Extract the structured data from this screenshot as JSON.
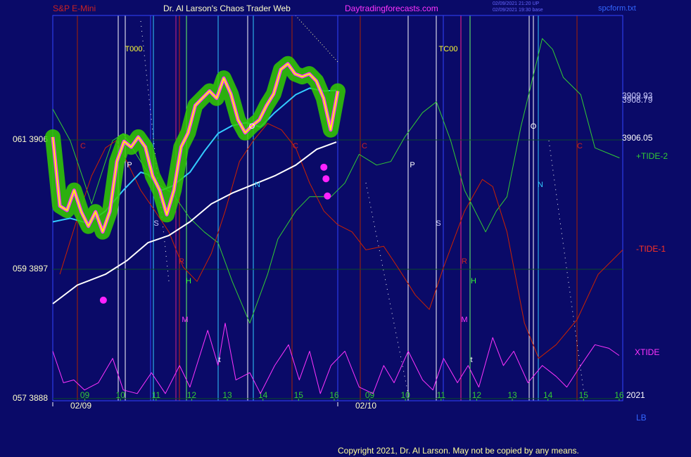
{
  "header": {
    "site_title": "Dr. Al Larson's Chaos Trader Web",
    "site_url": "Daytradingforecasts.com",
    "timestamps": [
      "02/09/2021 21:20 UP",
      "02/09/2021 19:30 base"
    ],
    "file": "spcform.txt",
    "copyright": "Copyright 2021, Dr. Al Larson. May not be copied by any means."
  },
  "chart_data": {
    "type": "line",
    "title": "S&P E-Mini",
    "xlim": [
      0.1,
      16.1
    ],
    "ylim": [
      3887.85,
      3914.66
    ],
    "xticks": [
      {
        "value": 1,
        "label": "09"
      },
      {
        "value": 2,
        "label": "10"
      },
      {
        "value": 3,
        "label": "11"
      },
      {
        "value": 4,
        "label": "12"
      },
      {
        "value": 5,
        "label": "13"
      },
      {
        "value": 6,
        "label": "14"
      },
      {
        "value": 7,
        "label": "15"
      },
      {
        "value": 8,
        "label": "16"
      },
      {
        "value": 9,
        "label": "09"
      },
      {
        "value": 10,
        "label": "10"
      },
      {
        "value": 11,
        "label": "11"
      },
      {
        "value": 12,
        "label": "12"
      },
      {
        "value": 13,
        "label": "13"
      },
      {
        "value": 14,
        "label": "14"
      },
      {
        "value": 15,
        "label": "15"
      },
      {
        "value": 16,
        "label": "16"
      }
    ],
    "x_groups": [
      "02/09",
      "02/10"
    ],
    "yticks": [
      {
        "value": 3906,
        "label": "061  3906"
      },
      {
        "value": 3897,
        "label": "059  3897"
      },
      {
        "value": 3888,
        "label": "057  3888"
      }
    ],
    "grid": true,
    "grid_color": "#0b4a2a",
    "price_labels": [
      3909.93,
      3908.79,
      3906.05
    ],
    "year_label": "2021",
    "corner_label": "LB",
    "annotations": [
      "T000",
      "TC00",
      "C",
      "C",
      "C",
      "C",
      "P",
      "P",
      "O",
      "O",
      "N",
      "N",
      "S",
      "S",
      "R",
      "R",
      "H",
      "H",
      "M",
      "M",
      "t",
      "t"
    ],
    "series": [
      {
        "color": "#ffff00",
        "glow_color": "#33cc00",
        "x": [
          0.1,
          0.3,
          0.5,
          0.7,
          0.9,
          1.1,
          1.3,
          1.5,
          1.7,
          1.9,
          2.1,
          2.3,
          2.5,
          2.7,
          2.9,
          3.1,
          3.3,
          3.5,
          3.7,
          3.9,
          4.1,
          4.3,
          4.5,
          4.7,
          4.9,
          5.1,
          5.3,
          5.5,
          5.7,
          5.9,
          6.1,
          6.3,
          6.5,
          6.7,
          6.9,
          7.1,
          7.3,
          7.5,
          7.7,
          7.9,
          8.1
        ],
        "values": [
          3906.2,
          3901.4,
          3901.1,
          3902.5,
          3901.0,
          3900.0,
          3901.0,
          3899.6,
          3901.0,
          3904.5,
          3905.9,
          3905.5,
          3906.2,
          3905.5,
          3903.5,
          3902.5,
          3900.8,
          3902.5,
          3905.5,
          3906.5,
          3908.4,
          3908.9,
          3909.4,
          3908.9,
          3910.3,
          3909.2,
          3907.4,
          3906.5,
          3907.0,
          3907.4,
          3908.4,
          3909.2,
          3910.9,
          3911.3,
          3910.6,
          3910.4,
          3910.6,
          3910.1,
          3908.9,
          3906.7,
          3909.4
        ]
      },
      {
        "color": "#33ccff",
        "x": [
          0.1,
          0.59,
          1.09,
          1.58,
          2.08,
          2.57,
          2.77,
          3.16,
          3.46,
          3.95,
          4.35,
          4.74,
          5.14,
          5.53,
          5.93,
          6.33,
          6.92,
          7.31,
          7.71,
          8.06
        ],
        "values": [
          3900.3,
          3900.55,
          3900.2,
          3901.05,
          3902.5,
          3903.75,
          3903.6,
          3902.5,
          3902.8,
          3903.75,
          3905.2,
          3906.45,
          3907.0,
          3907.2,
          3906.9,
          3907.9,
          3909.15,
          3909.6,
          3909.4,
          3909.45
        ]
      },
      {
        "color": "#ffffff",
        "x": [
          0.1,
          0.79,
          1.58,
          2.18,
          2.77,
          3.36,
          3.95,
          4.55,
          5.14,
          5.73,
          6.33,
          6.92,
          7.51,
          8.06
        ],
        "values": [
          3894.6,
          3895.9,
          3896.65,
          3897.6,
          3898.85,
          3899.35,
          3900.3,
          3901.55,
          3902.3,
          3902.9,
          3903.5,
          3904.25,
          3905.35,
          3905.85
        ]
      },
      {
        "name": "+TIDE-2",
        "color": "#33cc33",
        "x": [
          0.1,
          0.59,
          1.19,
          1.58,
          1.78,
          2.08,
          2.57,
          2.97,
          3.46,
          3.95,
          4.35,
          4.74,
          5.14,
          5.63,
          6.13,
          6.42,
          6.92,
          7.31,
          7.91,
          8.3,
          8.7,
          9.19,
          9.59,
          9.98,
          10.48,
          10.87,
          11.27,
          11.66,
          12.25,
          12.55,
          12.85,
          13.24,
          13.84,
          14.13,
          14.43,
          14.92,
          15.32,
          16.01
        ],
        "values": [
          3908.15,
          3905.95,
          3901.55,
          3904.5,
          3905.95,
          3906.45,
          3904.5,
          3903.0,
          3902.3,
          3900.55,
          3899.6,
          3898.85,
          3896.15,
          3893.25,
          3896.65,
          3899.1,
          3901.05,
          3902.05,
          3902.05,
          3903.0,
          3905.0,
          3904.25,
          3904.5,
          3906.2,
          3907.9,
          3908.65,
          3905.95,
          3902.5,
          3899.6,
          3901.05,
          3902.05,
          3906.9,
          3913.05,
          3912.3,
          3910.35,
          3909.15,
          3905.45,
          3904.75
        ]
      },
      {
        "name": "-TIDE-1",
        "color": "#cc2200",
        "x": [
          0.3,
          0.79,
          1.19,
          1.58,
          1.88,
          2.18,
          2.57,
          2.97,
          3.36,
          3.76,
          4.15,
          4.55,
          4.94,
          5.34,
          5.73,
          6.13,
          6.52,
          6.92,
          7.31,
          7.71,
          8.1,
          8.5,
          8.89,
          9.39,
          9.78,
          10.28,
          10.67,
          11.07,
          11.66,
          12.16,
          12.45,
          12.85,
          13.34,
          13.74,
          14.23,
          14.82,
          15.41,
          16.1
        ],
        "values": [
          3896.65,
          3900.55,
          3903.5,
          3905.45,
          3905.95,
          3904.5,
          3902.5,
          3901.05,
          3899.6,
          3897.15,
          3896.15,
          3898.1,
          3901.05,
          3904.5,
          3905.95,
          3907.15,
          3906.7,
          3905.45,
          3903.0,
          3901.05,
          3900.1,
          3899.6,
          3898.35,
          3898.6,
          3897.15,
          3895.2,
          3894.2,
          3897.15,
          3901.05,
          3903.25,
          3902.75,
          3899.6,
          3893.25,
          3890.8,
          3891.75,
          3893.5,
          3896.65,
          3898.35
        ]
      },
      {
        "name": "XTIDE",
        "color": "#ff33ff",
        "x": [
          0.1,
          0.4,
          0.69,
          0.99,
          1.38,
          1.78,
          2.08,
          2.47,
          2.87,
          3.26,
          3.66,
          3.95,
          4.45,
          4.74,
          4.94,
          5.24,
          5.63,
          5.93,
          6.33,
          6.72,
          7.02,
          7.31,
          7.61,
          7.91,
          8.3,
          8.7,
          9.09,
          9.39,
          9.68,
          10.08,
          10.48,
          10.77,
          11.07,
          11.46,
          11.76,
          12.06,
          12.45,
          12.75,
          13.04,
          13.44,
          13.84,
          14.23,
          14.53,
          14.92,
          15.32,
          15.71,
          16.0
        ],
        "values": [
          3891.3,
          3889.1,
          3889.3,
          3888.6,
          3889.1,
          3890.8,
          3888.6,
          3888.35,
          3889.8,
          3888.35,
          3890.3,
          3888.8,
          3892.75,
          3890.3,
          3893.25,
          3889.3,
          3889.8,
          3888.35,
          3890.3,
          3891.75,
          3889.3,
          3891.3,
          3888.35,
          3890.3,
          3891.3,
          3888.8,
          3888.35,
          3890.3,
          3889.1,
          3891.3,
          3889.3,
          3888.6,
          3890.8,
          3889.1,
          3890.3,
          3888.8,
          3892.25,
          3890.3,
          3891.3,
          3889.1,
          3890.3,
          3889.55,
          3888.8,
          3890.3,
          3891.75,
          3891.5,
          3891.0
        ]
      }
    ],
    "points": {
      "color": "#ff22ff",
      "x": [
        1.52,
        7.71,
        7.77,
        7.81
      ],
      "values": [
        3894.85,
        3904.1,
        3903.3,
        3902.1
      ]
    }
  }
}
